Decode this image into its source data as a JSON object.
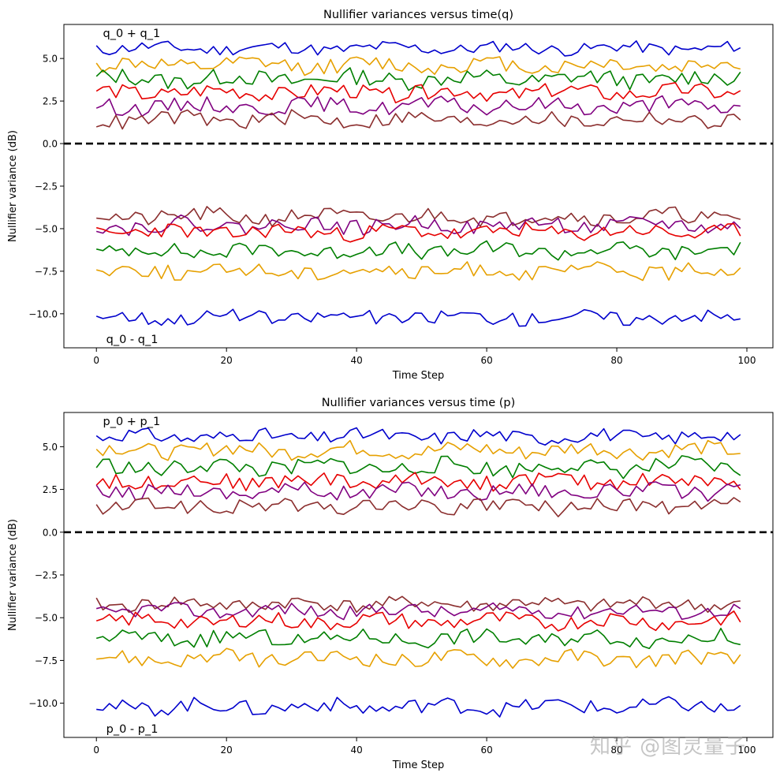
{
  "watermark": "知乎 @图灵量子",
  "colors": {
    "blue": "#0000cc",
    "orange": "#e6a000",
    "green": "#007f00",
    "red": "#e60000",
    "purple": "#800080",
    "brown": "#8b2e2e",
    "zero_line": "#000000"
  },
  "chart_data": [
    {
      "type": "line",
      "title": "Nullifier variances versus time(q)",
      "xlabel": "Time Step",
      "ylabel": "Nullifier variance (dB)",
      "xlim": [
        -5,
        104
      ],
      "ylim": [
        -12.0,
        7.0
      ],
      "xticks": [
        0,
        20,
        40,
        60,
        80,
        100
      ],
      "yticks": [
        5.0,
        2.5,
        0.0,
        -2.5,
        -5.0,
        -7.5,
        -10.0
      ],
      "ytick_labels": [
        "5.0",
        "2.5",
        "0.0",
        "−2.5",
        "−5.0",
        "−7.5",
        "−10.0"
      ],
      "annotation_top": "q_0 + q_1",
      "annotation_bottom": "q_0 - q_1",
      "zero_line": 0.0,
      "series": [
        {
          "name": "sum-blue",
          "color": "blue",
          "base": 5.6,
          "amp": 0.35,
          "seed": 11
        },
        {
          "name": "sum-orange",
          "color": "orange",
          "base": 4.6,
          "amp": 0.45,
          "seed": 12
        },
        {
          "name": "sum-green",
          "color": "green",
          "base": 3.8,
          "amp": 0.5,
          "seed": 13
        },
        {
          "name": "sum-red",
          "color": "red",
          "base": 3.0,
          "amp": 0.45,
          "seed": 14
        },
        {
          "name": "sum-purple",
          "color": "purple",
          "base": 2.2,
          "amp": 0.45,
          "seed": 15
        },
        {
          "name": "sum-brown",
          "color": "brown",
          "base": 1.4,
          "amp": 0.45,
          "seed": 16
        },
        {
          "name": "diff-brown",
          "color": "brown",
          "base": -4.3,
          "amp": 0.45,
          "seed": 21
        },
        {
          "name": "diff-purple",
          "color": "purple",
          "base": -4.8,
          "amp": 0.45,
          "seed": 22
        },
        {
          "name": "diff-red",
          "color": "red",
          "base": -5.2,
          "amp": 0.45,
          "seed": 23
        },
        {
          "name": "diff-green",
          "color": "green",
          "base": -6.3,
          "amp": 0.45,
          "seed": 24
        },
        {
          "name": "diff-orange",
          "color": "orange",
          "base": -7.5,
          "amp": 0.45,
          "seed": 25
        },
        {
          "name": "diff-blue",
          "color": "blue",
          "base": -10.2,
          "amp": 0.4,
          "seed": 26
        }
      ]
    },
    {
      "type": "line",
      "title": "Nullifier variances versus time (p)",
      "xlabel": "Time Step",
      "ylabel": "Nullifier variance (dB)",
      "xlim": [
        -5,
        104
      ],
      "ylim": [
        -12.0,
        7.0
      ],
      "xticks": [
        0,
        20,
        40,
        60,
        80,
        100
      ],
      "yticks": [
        5.0,
        2.5,
        0.0,
        -2.5,
        -5.0,
        -7.5,
        -10.0
      ],
      "ytick_labels": [
        "5.0",
        "2.5",
        "0.0",
        "−2.5",
        "−5.0",
        "−7.5",
        "−10.0"
      ],
      "annotation_top": "p_0 + p_1",
      "annotation_bottom": "p_0 - p_1",
      "zero_line": 0.0,
      "series": [
        {
          "name": "sum-blue",
          "color": "blue",
          "base": 5.6,
          "amp": 0.4,
          "seed": 31
        },
        {
          "name": "sum-orange",
          "color": "orange",
          "base": 4.8,
          "amp": 0.45,
          "seed": 32
        },
        {
          "name": "sum-green",
          "color": "green",
          "base": 3.8,
          "amp": 0.5,
          "seed": 33
        },
        {
          "name": "sum-red",
          "color": "red",
          "base": 3.0,
          "amp": 0.45,
          "seed": 34
        },
        {
          "name": "sum-purple",
          "color": "purple",
          "base": 2.4,
          "amp": 0.45,
          "seed": 35
        },
        {
          "name": "sum-brown",
          "color": "brown",
          "base": 1.5,
          "amp": 0.45,
          "seed": 36
        },
        {
          "name": "diff-brown",
          "color": "brown",
          "base": -4.2,
          "amp": 0.4,
          "seed": 41
        },
        {
          "name": "diff-purple",
          "color": "purple",
          "base": -4.6,
          "amp": 0.4,
          "seed": 42
        },
        {
          "name": "diff-red",
          "color": "red",
          "base": -5.2,
          "amp": 0.45,
          "seed": 43
        },
        {
          "name": "diff-green",
          "color": "green",
          "base": -6.2,
          "amp": 0.45,
          "seed": 44
        },
        {
          "name": "diff-orange",
          "color": "orange",
          "base": -7.4,
          "amp": 0.45,
          "seed": 45
        },
        {
          "name": "diff-blue",
          "color": "blue",
          "base": -10.2,
          "amp": 0.45,
          "seed": 46
        }
      ]
    }
  ]
}
